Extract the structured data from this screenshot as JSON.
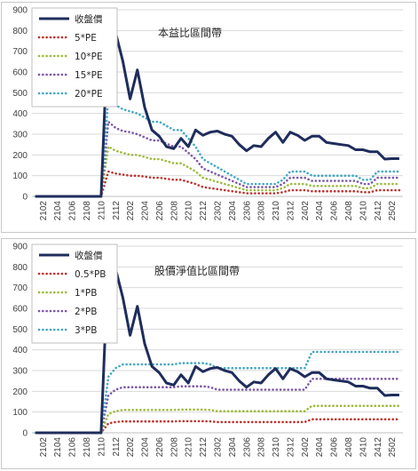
{
  "chart_data": [
    {
      "type": "line",
      "title": "本益比區間帶",
      "ylim": [
        0,
        900
      ],
      "yticks": [
        0,
        100,
        200,
        300,
        400,
        500,
        600,
        700,
        800,
        900
      ],
      "x": [
        "2101",
        "2102",
        "2103",
        "2104",
        "2105",
        "2106",
        "2107",
        "2108",
        "2109",
        "2110",
        "2111",
        "2112",
        "2201",
        "2202",
        "2203",
        "2204",
        "2205",
        "2206",
        "2207",
        "2208",
        "2209",
        "2210",
        "2211",
        "2212",
        "2301",
        "2302",
        "2303",
        "2304",
        "2305",
        "2306",
        "2307",
        "2308",
        "2309",
        "2310",
        "2311",
        "2312",
        "2401",
        "2402",
        "2403",
        "2404",
        "2405",
        "2406",
        "2407",
        "2408",
        "2409",
        "2410",
        "2411",
        "2412",
        "2501",
        "2502",
        "2503"
      ],
      "xticks": [
        "2102",
        "2104",
        "2106",
        "2108",
        "2110",
        "2112",
        "2202",
        "2204",
        "2206",
        "2208",
        "2210",
        "2212",
        "2302",
        "2304",
        "2306",
        "2308",
        "2310",
        "2312",
        "2402",
        "2404",
        "2406",
        "2408",
        "2410",
        "2412",
        "2502"
      ],
      "legend_position": "top-left",
      "series": [
        {
          "name": "收盤價",
          "color": "#1f2d5c",
          "style": "solid",
          "values": [
            0,
            0,
            0,
            0,
            0,
            0,
            0,
            0,
            0,
            0,
            850,
            790,
            650,
            470,
            610,
            430,
            320,
            290,
            240,
            230,
            280,
            240,
            320,
            295,
            310,
            315,
            300,
            290,
            250,
            220,
            245,
            240,
            280,
            310,
            260,
            310,
            295,
            270,
            290,
            290,
            260,
            255,
            250,
            245,
            225,
            225,
            215,
            215,
            180,
            182,
            182
          ]
        },
        {
          "name": "5*PE",
          "color": "#c0322c",
          "style": "dotted",
          "values": [
            0,
            0,
            0,
            0,
            0,
            0,
            0,
            0,
            0,
            0,
            120,
            110,
            105,
            100,
            100,
            95,
            90,
            90,
            85,
            80,
            80,
            70,
            60,
            45,
            40,
            35,
            30,
            25,
            20,
            15,
            15,
            15,
            15,
            15,
            20,
            30,
            30,
            30,
            25,
            25,
            25,
            25,
            25,
            25,
            25,
            20,
            20,
            30,
            30,
            30,
            30
          ]
        },
        {
          "name": "10*PE",
          "color": "#9bbb3b",
          "style": "dotted",
          "values": [
            0,
            0,
            0,
            0,
            0,
            0,
            0,
            0,
            0,
            0,
            240,
            220,
            210,
            200,
            200,
            190,
            180,
            180,
            170,
            160,
            160,
            140,
            120,
            90,
            80,
            70,
            60,
            50,
            40,
            30,
            30,
            30,
            30,
            30,
            40,
            60,
            60,
            60,
            50,
            50,
            50,
            50,
            50,
            50,
            50,
            40,
            40,
            60,
            60,
            60,
            60
          ]
        },
        {
          "name": "15*PE",
          "color": "#7b58a8",
          "style": "dotted",
          "values": [
            0,
            0,
            0,
            0,
            0,
            0,
            0,
            0,
            0,
            0,
            360,
            330,
            315,
            310,
            300,
            285,
            270,
            270,
            255,
            240,
            240,
            210,
            180,
            135,
            120,
            105,
            90,
            75,
            60,
            45,
            45,
            45,
            45,
            45,
            60,
            90,
            90,
            90,
            75,
            75,
            75,
            75,
            75,
            75,
            75,
            60,
            60,
            90,
            90,
            90,
            90
          ]
        },
        {
          "name": "20*PE",
          "color": "#45a7c4",
          "style": "dotted",
          "values": [
            0,
            0,
            0,
            0,
            0,
            0,
            0,
            0,
            0,
            0,
            480,
            440,
            420,
            410,
            400,
            380,
            360,
            360,
            340,
            320,
            320,
            280,
            240,
            180,
            160,
            140,
            120,
            100,
            80,
            60,
            60,
            60,
            60,
            60,
            80,
            120,
            120,
            120,
            100,
            100,
            100,
            100,
            100,
            100,
            100,
            80,
            80,
            120,
            120,
            120,
            120
          ]
        }
      ]
    },
    {
      "type": "line",
      "title": "股價淨值比區間帶",
      "ylim": [
        0,
        900
      ],
      "yticks": [
        0,
        100,
        200,
        300,
        400,
        500,
        600,
        700,
        800,
        900
      ],
      "x": [
        "2101",
        "2102",
        "2103",
        "2104",
        "2105",
        "2106",
        "2107",
        "2108",
        "2109",
        "2110",
        "2111",
        "2112",
        "2201",
        "2202",
        "2203",
        "2204",
        "2205",
        "2206",
        "2207",
        "2208",
        "2209",
        "2210",
        "2211",
        "2212",
        "2301",
        "2302",
        "2303",
        "2304",
        "2305",
        "2306",
        "2307",
        "2308",
        "2309",
        "2310",
        "2311",
        "2312",
        "2401",
        "2402",
        "2403",
        "2404",
        "2405",
        "2406",
        "2407",
        "2408",
        "2409",
        "2410",
        "2411",
        "2412",
        "2501",
        "2502",
        "2503"
      ],
      "xticks": [
        "2102",
        "2104",
        "2106",
        "2108",
        "2110",
        "2112",
        "2202",
        "2204",
        "2206",
        "2208",
        "2210",
        "2212",
        "2302",
        "2304",
        "2306",
        "2308",
        "2310",
        "2312",
        "2402",
        "2404",
        "2406",
        "2408",
        "2410",
        "2412",
        "2502"
      ],
      "legend_position": "top-left",
      "series": [
        {
          "name": "收盤價",
          "color": "#1f2d5c",
          "style": "solid",
          "values": [
            0,
            0,
            0,
            0,
            0,
            0,
            0,
            0,
            0,
            0,
            850,
            790,
            650,
            470,
            610,
            430,
            320,
            290,
            240,
            230,
            280,
            240,
            320,
            295,
            310,
            315,
            300,
            290,
            250,
            220,
            245,
            240,
            280,
            310,
            260,
            310,
            295,
            270,
            290,
            290,
            260,
            255,
            250,
            245,
            225,
            225,
            215,
            215,
            180,
            182,
            182
          ]
        },
        {
          "name": "0.5*PB",
          "color": "#c0322c",
          "style": "dotted",
          "values": [
            0,
            0,
            0,
            0,
            0,
            0,
            0,
            0,
            0,
            0,
            45,
            52,
            55,
            55,
            55,
            55,
            55,
            55,
            55,
            55,
            56,
            56,
            56,
            56,
            55,
            52,
            52,
            52,
            52,
            52,
            52,
            52,
            52,
            52,
            52,
            52,
            52,
            52,
            65,
            65,
            65,
            65,
            65,
            65,
            65,
            65,
            65,
            65,
            65,
            65,
            65
          ]
        },
        {
          "name": "1*PB",
          "color": "#9bbb3b",
          "style": "dotted",
          "values": [
            0,
            0,
            0,
            0,
            0,
            0,
            0,
            0,
            0,
            0,
            90,
            104,
            110,
            110,
            110,
            110,
            110,
            110,
            110,
            110,
            112,
            112,
            112,
            112,
            110,
            104,
            104,
            104,
            104,
            104,
            104,
            104,
            104,
            104,
            104,
            104,
            104,
            104,
            130,
            130,
            130,
            130,
            130,
            130,
            130,
            130,
            130,
            130,
            130,
            130,
            130
          ]
        },
        {
          "name": "2*PB",
          "color": "#7b58a8",
          "style": "dotted",
          "values": [
            0,
            0,
            0,
            0,
            0,
            0,
            0,
            0,
            0,
            0,
            180,
            208,
            220,
            220,
            220,
            220,
            220,
            220,
            220,
            220,
            224,
            224,
            224,
            224,
            220,
            208,
            208,
            208,
            208,
            208,
            208,
            208,
            208,
            208,
            208,
            208,
            208,
            208,
            260,
            260,
            260,
            260,
            260,
            260,
            260,
            260,
            260,
            260,
            260,
            260,
            260
          ]
        },
        {
          "name": "3*PB",
          "color": "#45a7c4",
          "style": "dotted",
          "values": [
            0,
            0,
            0,
            0,
            0,
            0,
            0,
            0,
            0,
            0,
            270,
            312,
            330,
            330,
            330,
            330,
            330,
            330,
            330,
            330,
            336,
            336,
            336,
            336,
            330,
            312,
            312,
            312,
            312,
            312,
            312,
            312,
            312,
            312,
            312,
            312,
            312,
            312,
            390,
            390,
            390,
            390,
            390,
            390,
            390,
            390,
            390,
            390,
            390,
            390,
            390
          ]
        }
      ]
    }
  ]
}
